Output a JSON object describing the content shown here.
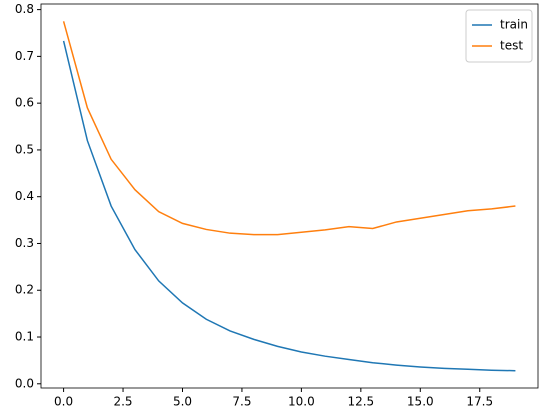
{
  "chart_data": {
    "type": "line",
    "x": [
      0,
      1,
      2,
      3,
      4,
      5,
      6,
      7,
      8,
      9,
      10,
      11,
      12,
      13,
      14,
      15,
      16,
      17,
      18,
      19
    ],
    "series": [
      {
        "name": "train",
        "color": "#1f77b4",
        "values": [
          0.733,
          0.52,
          0.38,
          0.287,
          0.22,
          0.173,
          0.138,
          0.113,
          0.095,
          0.08,
          0.068,
          0.059,
          0.052,
          0.045,
          0.04,
          0.036,
          0.033,
          0.031,
          0.029,
          0.028
        ]
      },
      {
        "name": "test",
        "color": "#ff7f0e",
        "values": [
          0.775,
          0.59,
          0.48,
          0.415,
          0.368,
          0.343,
          0.33,
          0.322,
          0.319,
          0.319,
          0.324,
          0.329,
          0.336,
          0.332,
          0.346,
          0.354,
          0.362,
          0.37,
          0.374,
          0.38
        ]
      }
    ],
    "xlim": [
      -0.95,
      19.95
    ],
    "ylim": [
      -0.009,
      0.812
    ],
    "xticks": [
      {
        "value": 0,
        "label": "0.0"
      },
      2.5,
      {
        "value": 5,
        "label": "5.0"
      },
      7.5,
      {
        "value": 10,
        "label": "10.0"
      },
      12.5,
      {
        "value": 15,
        "label": "15.0"
      },
      17.5
    ],
    "yticks": [
      {
        "value": 0,
        "label": "0.0"
      },
      0.1,
      0.2,
      0.3,
      0.4,
      0.5,
      0.6,
      0.7,
      0.8
    ],
    "legend": "upper right",
    "grid": false
  }
}
